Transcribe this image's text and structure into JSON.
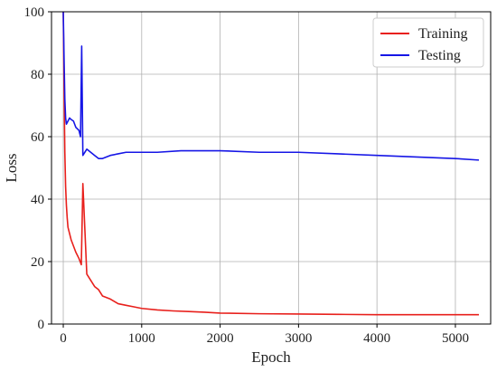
{
  "chart_data": {
    "type": "line",
    "title": "",
    "xlabel": "Epoch",
    "ylabel": "Loss",
    "xlim": [
      -150,
      5450
    ],
    "ylim": [
      0,
      100
    ],
    "xticks": [
      0,
      1000,
      2000,
      3000,
      4000,
      5000
    ],
    "yticks": [
      0,
      20,
      40,
      60,
      80,
      100
    ],
    "grid": true,
    "legend_position": "top-right",
    "series": [
      {
        "name": "Training",
        "color": "#e8201c",
        "x": [
          0,
          10,
          20,
          30,
          40,
          50,
          60,
          80,
          100,
          130,
          160,
          200,
          230,
          250,
          300,
          350,
          400,
          450,
          500,
          600,
          700,
          800,
          900,
          1000,
          1200,
          1400,
          1600,
          1800,
          2000,
          2500,
          3000,
          3500,
          4000,
          4500,
          5000,
          5300
        ],
        "y": [
          100,
          75,
          55,
          44,
          38,
          34,
          31,
          29,
          27,
          25,
          23,
          21,
          19,
          45,
          16,
          14,
          12,
          11,
          9,
          8,
          6.5,
          6,
          5.5,
          5,
          4.5,
          4.2,
          4,
          3.8,
          3.5,
          3.3,
          3.2,
          3.1,
          3,
          3,
          3,
          3
        ]
      },
      {
        "name": "Testing",
        "color": "#1616e6",
        "x": [
          0,
          10,
          20,
          30,
          40,
          60,
          80,
          100,
          130,
          160,
          200,
          220,
          235,
          250,
          300,
          350,
          400,
          450,
          500,
          600,
          700,
          800,
          1000,
          1200,
          1500,
          2000,
          2500,
          3000,
          3500,
          4000,
          4500,
          5000,
          5300
        ],
        "y": [
          100,
          85,
          72,
          66,
          64,
          65,
          66,
          65.5,
          65,
          63,
          62,
          60,
          89,
          54,
          56,
          55,
          54,
          53,
          53,
          54,
          54.5,
          55,
          55,
          55,
          55.5,
          55.5,
          55,
          55,
          54.5,
          54,
          53.5,
          53,
          52.5
        ]
      }
    ]
  }
}
